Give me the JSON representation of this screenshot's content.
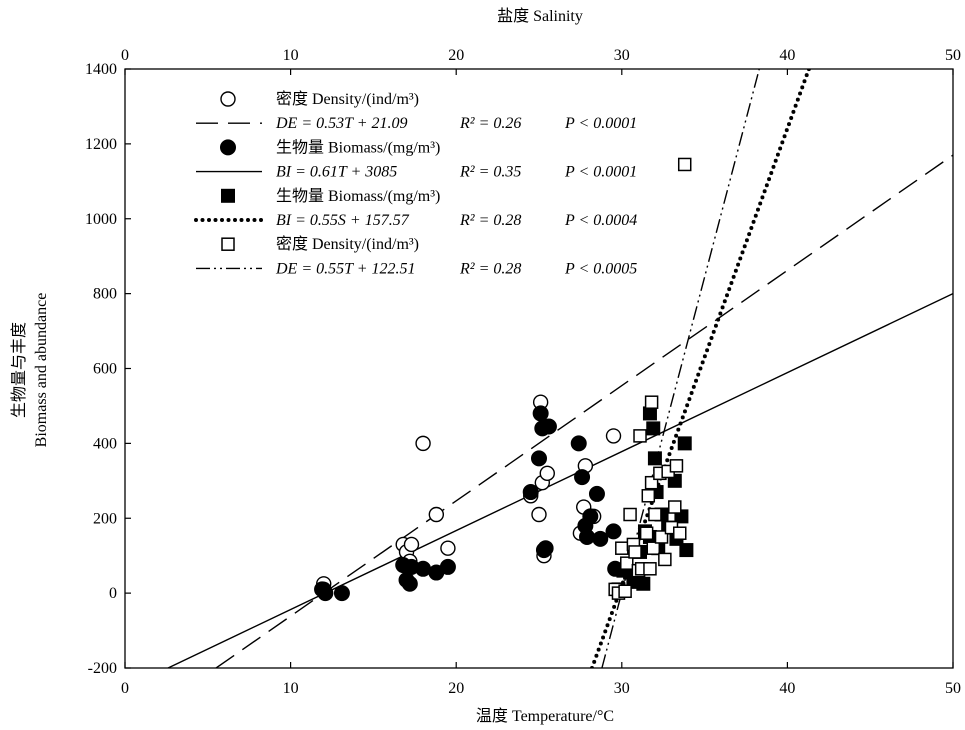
{
  "chart_data": {
    "type": "scatter",
    "title": "",
    "xlabel": "温度 Temperature/°C",
    "x2label": "盐度 Salinity",
    "ylabel_line1": "生物量与丰度",
    "ylabel_line2": "Biomass and abundance",
    "xlim": [
      0,
      50
    ],
    "x2lim": [
      0,
      50
    ],
    "ylim": [
      -200,
      1400
    ],
    "xticks": [
      0,
      10,
      20,
      30,
      40,
      50
    ],
    "x2ticks": [
      0,
      10,
      20,
      30,
      40,
      50
    ],
    "yticks": [
      -200,
      0,
      200,
      400,
      600,
      800,
      1000,
      1200,
      1400
    ],
    "grid": false,
    "legend_position": "top-left",
    "legend": [
      {
        "marker": "open-circle",
        "label": "密度 Density/(ind/m³)"
      },
      {
        "line": "long-dash",
        "eq": "DE = 0.53T + 21.09",
        "r2": "R² = 0.26",
        "p": "P < 0.0001"
      },
      {
        "marker": "filled-circle",
        "label": "生物量 Biomass/(mg/m³)"
      },
      {
        "line": "solid",
        "eq": "BI = 0.61T + 3085",
        "r2": "R² = 0.35",
        "p": "P < 0.0001"
      },
      {
        "marker": "filled-square",
        "label": "生物量 Biomass/(mg/m³)"
      },
      {
        "line": "dotted",
        "eq": "BI = 0.55S + 157.57",
        "r2": "R² = 0.28",
        "p": "P < 0.0004"
      },
      {
        "marker": "open-square",
        "label": "密度 Density/(ind/m³)"
      },
      {
        "line": "dash-dot-dot",
        "eq": "DE = 0.55T + 122.51",
        "r2": "R² = 0.28",
        "p": "P < 0.0005"
      }
    ],
    "series": [
      {
        "marker": "open-circle",
        "axis": "temperature",
        "points": [
          [
            12,
            25
          ],
          [
            12,
            10
          ],
          [
            16.8,
            130
          ],
          [
            17,
            110
          ],
          [
            17.2,
            85
          ],
          [
            17.3,
            130
          ],
          [
            18,
            400
          ],
          [
            18.8,
            210
          ],
          [
            19.5,
            120
          ],
          [
            24.5,
            260
          ],
          [
            25,
            210
          ],
          [
            25.1,
            510
          ],
          [
            25.2,
            295
          ],
          [
            25.3,
            100
          ],
          [
            25.5,
            320
          ],
          [
            27.5,
            160
          ],
          [
            27.7,
            230
          ],
          [
            27.8,
            340
          ],
          [
            28.3,
            205
          ],
          [
            29.5,
            420
          ]
        ]
      },
      {
        "marker": "filled-circle",
        "axis": "temperature",
        "points": [
          [
            11.9,
            10
          ],
          [
            12.1,
            0
          ],
          [
            13.1,
            0
          ],
          [
            16.8,
            75
          ],
          [
            17,
            35
          ],
          [
            17.2,
            25
          ],
          [
            17.3,
            70
          ],
          [
            18,
            65
          ],
          [
            18.8,
            55
          ],
          [
            19.5,
            70
          ],
          [
            24.5,
            270
          ],
          [
            25,
            360
          ],
          [
            25.1,
            480
          ],
          [
            25.2,
            440
          ],
          [
            25.3,
            115
          ],
          [
            25.4,
            120
          ],
          [
            25.6,
            445
          ],
          [
            27.4,
            400
          ],
          [
            27.6,
            310
          ],
          [
            27.8,
            180
          ],
          [
            27.9,
            150
          ],
          [
            28.1,
            205
          ],
          [
            28.5,
            265
          ],
          [
            28.7,
            145
          ],
          [
            29.5,
            165
          ],
          [
            29.6,
            65
          ]
        ]
      },
      {
        "marker": "filled-square",
        "axis": "salinity",
        "points": [
          [
            29.8,
            10
          ],
          [
            30.1,
            60
          ],
          [
            30.5,
            55
          ],
          [
            30.7,
            40
          ],
          [
            31,
            30
          ],
          [
            31.1,
            110
          ],
          [
            31.3,
            25
          ],
          [
            31.4,
            165
          ],
          [
            31.7,
            150
          ],
          [
            31.7,
            480
          ],
          [
            31.9,
            440
          ],
          [
            32,
            360
          ],
          [
            32.1,
            270
          ],
          [
            32.2,
            120
          ],
          [
            32.4,
            210
          ],
          [
            32.8,
            175
          ],
          [
            33.2,
            300
          ],
          [
            33.3,
            145
          ],
          [
            33.6,
            205
          ],
          [
            33.8,
            400
          ],
          [
            33.9,
            115
          ]
        ]
      },
      {
        "marker": "open-square",
        "axis": "salinity",
        "points": [
          [
            29.6,
            10
          ],
          [
            29.8,
            0
          ],
          [
            30,
            120
          ],
          [
            30.2,
            5
          ],
          [
            30.3,
            80
          ],
          [
            30.5,
            210
          ],
          [
            30.7,
            130
          ],
          [
            30.8,
            110
          ],
          [
            31,
            60
          ],
          [
            31.1,
            420
          ],
          [
            31.2,
            65
          ],
          [
            31.5,
            160
          ],
          [
            31.6,
            260
          ],
          [
            31.7,
            65
          ],
          [
            31.8,
            510
          ],
          [
            31.8,
            295
          ],
          [
            31.9,
            120
          ],
          [
            32,
            210
          ],
          [
            32.3,
            320
          ],
          [
            32.4,
            150
          ],
          [
            32.6,
            90
          ],
          [
            32.8,
            325
          ],
          [
            33,
            175
          ],
          [
            33.2,
            230
          ],
          [
            33.3,
            340
          ],
          [
            33.5,
            160
          ],
          [
            33.8,
            1145
          ]
        ]
      }
    ],
    "lines": [
      {
        "style": "long-dash",
        "axis": "temperature",
        "x": [
          5.5,
          50
        ],
        "y": [
          -200,
          1170
        ]
      },
      {
        "style": "solid",
        "axis": "temperature",
        "x": [
          2.6,
          50
        ],
        "y": [
          -200,
          800
        ]
      },
      {
        "style": "dotted",
        "axis": "salinity",
        "x": [
          28.2,
          41.3
        ],
        "y": [
          -200,
          1400
        ]
      },
      {
        "style": "dash-dot-dot",
        "axis": "temperature",
        "x": [
          28.8,
          38.3
        ],
        "y": [
          -200,
          1400
        ]
      }
    ]
  }
}
